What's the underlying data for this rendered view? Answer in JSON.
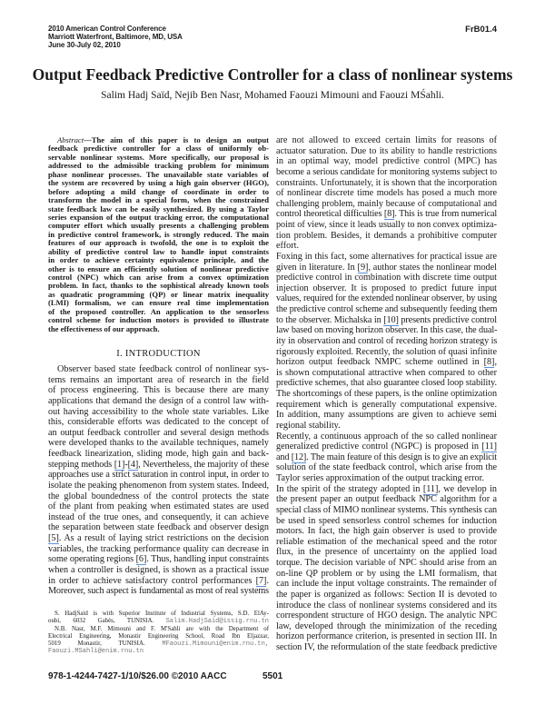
{
  "header": {
    "lines": [
      "2010 American Control Conference",
      "Marriott Waterfront, Baltimore, MD, USA",
      "June 30-July 02, 2010"
    ],
    "code": "FrB01.4"
  },
  "title": "Output Feedback Predictive Controller for a class of nonlinear systems",
  "authors": "Salim Hadj Saïd, Nejib Ben Nasr, Mohamed Faouzi Mimouni and Faouzi MŚahli.",
  "abstract": {
    "label": "Abstract",
    "lines": [
      "—The aim of this paper is to design an output",
      "feedback predictive controller for a class of uniformly ob-",
      "servable nonlinear systems. More specifically, our proposal is",
      "addressed to the admissible tracking problem for minimum",
      "phase nonlinear processes. The unavailable state variables of",
      "the system are recovered by using a high gain observer (HGO),",
      "before adopting a mild change of coordinate in order to",
      "transform the model in a special form, when the constrained",
      "state feedback law can be easily synthesized. By using a Taylor",
      "series expansion of the output tracking error, the computational",
      "computer effort which usually presents a challenging problem",
      "in predictive control framework, is strongly reduced. The main",
      "features of our approach is twofold, the one is to exploit the",
      "ability of predictive control law to handle input constraints",
      "in order to achieve certainty equivalence principle, and the",
      "other is to ensure an efficiently solution of nonlinear predictive",
      "control (NPC) which can arise from a convex optimization",
      "problem. In fact, thanks to the sophistical already known tools",
      "as quadratic programming (QP) or linear matrix inequality",
      "(LMI) formalism, we can ensure real time implementation",
      "of the proposed controller. An application to the sensorless",
      "control scheme for induction motors is provided to illustrate",
      "the effectiveness of our approach."
    ]
  },
  "intro": {
    "heading": "I. INTRODUCTION",
    "lines": [
      "Observer based state feedback control of nonlinear sys-",
      "tems remains an important area of research in the field",
      "of process engineering. This is because there are many",
      "applications that demand the design of a control law with-",
      "out having accessibility to the whole state variables. Like",
      "this, considerable efforts was dedicated to the concept of",
      "an output feedback controller and several design methods",
      "were developed thanks to the available techniques, namely",
      "feedback linearization, sliding mode, high gain and back-",
      "stepping methods [1]-[4], Nevertheless, the majority of these",
      "approaches use a strict saturation in control input, in order to",
      "isolate the peaking phenomenon from system states. Indeed,",
      "the global boundedness of the control protects the state",
      "of the plant from peaking when estimated states are used",
      "instead of the true ones, and consequently, it can achieve",
      "the separation between state feedback and observer design",
      "[5]. As a result of laying strict restrictions on the decision",
      "variables, the tracking performance quality can decrease in",
      "some operating regions [6]. Thus, handling input constraints",
      "when a controller is designed, is shown as a practical issue",
      "in order to achieve satisfactory control performances [7].",
      "Moreover, such aspect is fundamental as most of real systems"
    ]
  },
  "right_column": {
    "paragraphs": [
      [
        "are not allowed to exceed certain limits for reasons of",
        "actuator saturation. Due to its ability to handle restrictions",
        "in an optimal way, model predictive control (MPC) has",
        "become a serious candidate for monitoring systems subject to",
        "constraints. Unfortunately, it is shown that the incorporation",
        "of nonlinear discrete time models has posed a much more",
        "challenging problem, mainly because of computational and",
        "control theoretical difficulties [8]. This is true from numerical",
        "point of view, since it leads usually to non convex optimiza-",
        "tion problem. Besides, it demands a prohibitive computer",
        "effort."
      ],
      [
        "Foxing in this fact, some alternatives for practical issue are",
        "given in literature. In [9], author states the nonlinear model",
        "predictive control in combination with discrete time output",
        "injection observer. It is proposed to predict future input",
        "values, required for the extended nonlinear observer, by using",
        "the predictive control scheme and subsequently feeding them",
        "to the observer. Michalska in [10] presents predictive control",
        "law based on moving horizon observer. In this case, the dual-",
        "ity in observation and control of receding horizon strategy is",
        "rigorously exploited. Recently, the solution of quasi infinite",
        "horizon output feedback NMPC scheme outlined in [8],",
        "is shown computational attractive when compared to other",
        "predictive schemes, that also guarantee closed loop stability.",
        "The shortcomings of these papers, is the online optimization",
        "requirement which is generally computational expensive.",
        "In addition, many assumptions are given to achieve semi",
        "regional stability."
      ],
      [
        "Recently, a continuous approach of the so called nonlinear",
        "generalized predictive control (NGPC) is proposed in [11]",
        "and [12]. The main feature of this design is to give an explicit",
        "solution of the state feedback control, which arise from the",
        "Taylor series approximation of the output tracking error."
      ],
      [
        "In the spirit of the strategy adopted in [11], we develop in",
        "the present paper an output feedback NPC algorithm for a",
        "special class of MIMO nonlinear systems. This synthesis can",
        "be used in speed sensorless control schemes for induction",
        "motors. In fact, the high gain observer is used to provide",
        "reliable estimation of the mechanical speed and the rotor",
        "flux, in the presence of uncertainty on the applied load",
        "torque. The decision variable of NPC should arise from an",
        "on-line QP problem or by using the LMI formalism, that",
        "can include the input voltage constraints. The remainder of",
        "the paper is organized as follows: Section II is devoted to",
        "introduce the class of nonlinear systems considered and its",
        "correspondent structure of HGO design. The analytic NPC",
        "law, developed through the minimization of the receding",
        "horizon performance criterion, is presented in section III. In",
        "section IV, the reformulation of the state feedback predictive"
      ]
    ]
  },
  "footnote": [
    {
      "text": "S. HadjSaid is with Superior Institute of Industrial Systems, S.D. ElAy-",
      "email": ""
    },
    {
      "text": "oubi, 6032 Gabès, TUNISIA. ",
      "email": "Salim.HadjSaid@issig.rnu.tn"
    },
    {
      "text": "N.B. Nasr, M.F. Mimouni and F. M'Sahli are with the Department of",
      "email": ""
    },
    {
      "text": "Electrical Engineering, Monastir Engineering School, Road Ibn Eljazzar,",
      "email": ""
    },
    {
      "text": "5019 Monastir, TUNISIA. ",
      "email": "MFaouzi.Mimouni@enim.rnu.tn,"
    },
    {
      "text": "",
      "email": "Faouzi.MSahli@enim.rnu.tn"
    }
  ],
  "footer": {
    "isbn": "978-1-4244-7427-1/10/$26.00 ©2010 AACC",
    "page": "5501"
  },
  "colors": {
    "citation_underline": "#5b8fd6",
    "email": "#777777"
  }
}
